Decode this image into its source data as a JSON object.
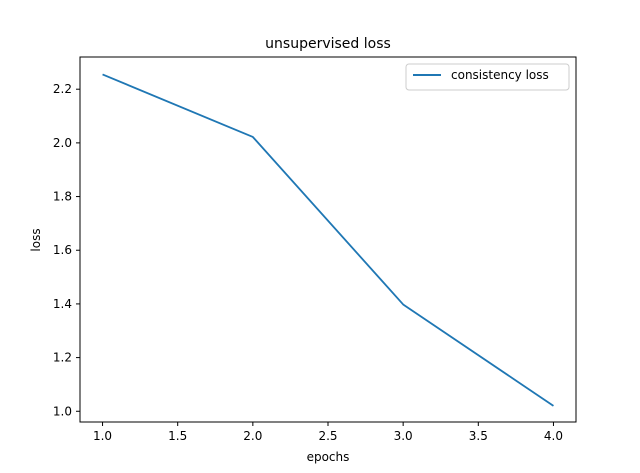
{
  "chart_data": {
    "type": "line",
    "title": "unsupervised loss",
    "xlabel": "epochs",
    "ylabel": "loss",
    "xlim": [
      0.85,
      4.15
    ],
    "ylim": [
      0.96,
      2.32
    ],
    "x_ticks": [
      1.0,
      1.5,
      2.0,
      2.5,
      3.0,
      3.5,
      4.0
    ],
    "x_tick_labels": [
      "1.0",
      "1.5",
      "2.0",
      "2.5",
      "3.0",
      "3.5",
      "4.0"
    ],
    "y_ticks": [
      1.0,
      1.2,
      1.4,
      1.6,
      1.8,
      2.0,
      2.2
    ],
    "y_tick_labels": [
      "1.0",
      "1.2",
      "1.4",
      "1.6",
      "1.8",
      "2.0",
      "2.2"
    ],
    "grid": false,
    "legend_position": "top-right",
    "series": [
      {
        "name": "consistency loss",
        "color": "#1f77b4",
        "x": [
          1.0,
          2.0,
          3.0,
          4.0
        ],
        "y": [
          2.255,
          2.022,
          1.398,
          1.02
        ]
      }
    ]
  }
}
